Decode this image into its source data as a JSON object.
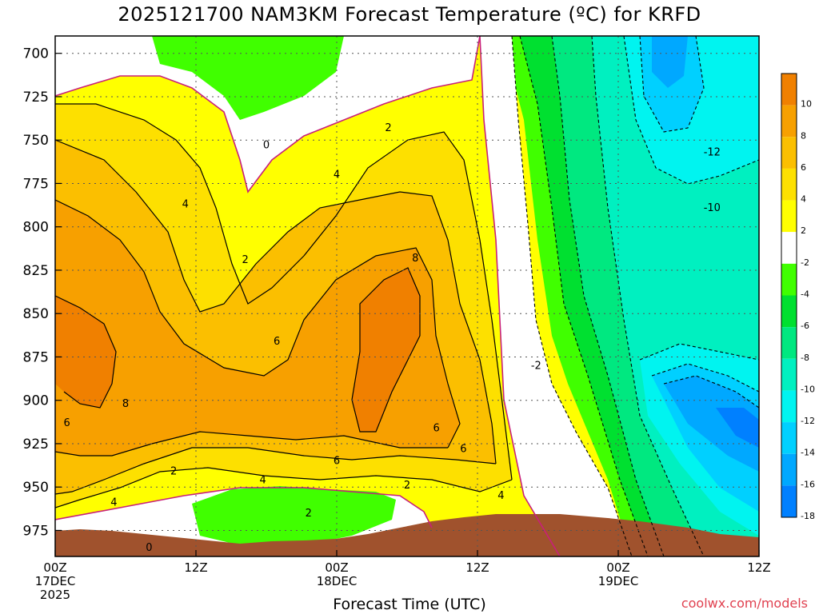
{
  "chart_data": {
    "type": "heatmap",
    "title": "2025121700 NAM3KM Forecast Temperature (ºC) for KRFD",
    "xlabel": "Forecast Time (UTC)",
    "ylabel": "",
    "y_ticks": [
      "700",
      "725",
      "750",
      "775",
      "800",
      "825",
      "850",
      "875",
      "900",
      "925",
      "950",
      "975"
    ],
    "x_ticks": [
      {
        "hour": 0,
        "line1": "00Z",
        "line2": "17DEC",
        "line3": "2025"
      },
      {
        "hour": 12,
        "line1": "12Z",
        "line2": "",
        "line3": ""
      },
      {
        "hour": 24,
        "line1": "00Z",
        "line2": "18DEC",
        "line3": ""
      },
      {
        "hour": 36,
        "line1": "12Z",
        "line2": "",
        "line3": ""
      },
      {
        "hour": 48,
        "line1": "00Z",
        "line2": "19DEC",
        "line3": ""
      },
      {
        "hour": 60,
        "line1": "12Z",
        "line2": "",
        "line3": ""
      }
    ],
    "colorbar_labels": [
      "10",
      "8",
      "6",
      "4",
      "2",
      "-2",
      "-4",
      "-6",
      "-8",
      "-10",
      "-12",
      "-14",
      "-16",
      "-18"
    ],
    "colorbar_colors": [
      "#f08000",
      "#f7a000",
      "#fbbf00",
      "#fde000",
      "#ffff00",
      "#ffffff",
      "#40ff00",
      "#00e030",
      "#00e880",
      "#00f0c0",
      "#00f4f0",
      "#00d0ff",
      "#00a8ff",
      "#0080ff"
    ],
    "contour_labels": [
      {
        "text": "2",
        "hour": 28.4,
        "p": 743
      },
      {
        "text": "0",
        "hour": 18.0,
        "p": 753
      },
      {
        "text": "4",
        "hour": 24.0,
        "p": 770
      },
      {
        "text": "4",
        "hour": 11.1,
        "p": 787
      },
      {
        "text": "2",
        "hour": 16.2,
        "p": 819
      },
      {
        "text": "8",
        "hour": 30.7,
        "p": 818
      },
      {
        "text": "6",
        "hour": 18.9,
        "p": 866
      },
      {
        "text": "-2",
        "hour": 41.0,
        "p": 880
      },
      {
        "text": "-12",
        "hour": 56.0,
        "p": 757
      },
      {
        "text": "-10",
        "hour": 56.0,
        "p": 789
      },
      {
        "text": "8",
        "hour": 6.0,
        "p": 902
      },
      {
        "text": "6",
        "hour": 1.0,
        "p": 913
      },
      {
        "text": "6",
        "hour": 32.5,
        "p": 916
      },
      {
        "text": "6",
        "hour": 34.8,
        "p": 928
      },
      {
        "text": "6",
        "hour": 24.0,
        "p": 935
      },
      {
        "text": "2",
        "hour": 10.1,
        "p": 941
      },
      {
        "text": "4",
        "hour": 17.7,
        "p": 946
      },
      {
        "text": "2",
        "hour": 30.0,
        "p": 949
      },
      {
        "text": "4",
        "hour": 38.0,
        "p": 955
      },
      {
        "text": "4",
        "hour": 5.0,
        "p": 959
      },
      {
        "text": "2",
        "hour": 21.6,
        "p": 965
      },
      {
        "text": "0",
        "hour": 8.0,
        "p": 985
      }
    ]
  },
  "footer": {
    "xlabel": "Forecast Time (UTC)",
    "credit": "coolwx.com/models"
  }
}
